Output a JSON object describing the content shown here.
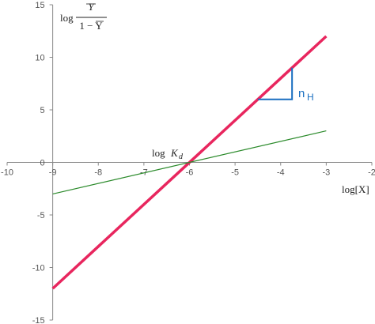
{
  "chart_data": {
    "type": "line",
    "xlim": [
      -10,
      -2
    ],
    "ylim": [
      -15,
      15
    ],
    "x_ticks": [
      -10,
      -9,
      -8,
      -7,
      -6,
      -5,
      -4,
      -3,
      -2
    ],
    "y_ticks": [
      -15,
      -10,
      -5,
      0,
      5,
      10,
      15
    ],
    "x_tick_labels": [
      "-10",
      "-9",
      "-8",
      "-7",
      "-6",
      "-5",
      "-4",
      "-3",
      "-2"
    ],
    "y_tick_labels": [
      "-15",
      "-10",
      "-5",
      "0",
      "5",
      "10",
      "15"
    ],
    "series": [
      {
        "x": [
          -9,
          -3
        ],
        "y": [
          -12,
          12
        ],
        "color": "#e8265e"
      },
      {
        "x": [
          -9,
          -3
        ],
        "y": [
          -3,
          3
        ],
        "color": "#2a8a2a"
      }
    ],
    "hill_triangle": {
      "x_start": -4.5,
      "x_end": -3.75,
      "y_low": 6,
      "y_high": 9,
      "color": "#1a6fc0"
    },
    "labels": {
      "ylabel_log": "log",
      "ylabel_numerator": "Y",
      "ylabel_denominator": "1 − Y",
      "xlabel": "log[X]",
      "kd_label_log": "log",
      "kd_label_K": "K",
      "kd_label_sub": "d",
      "hill": "n",
      "hill_sub": "H"
    },
    "grid": false
  }
}
